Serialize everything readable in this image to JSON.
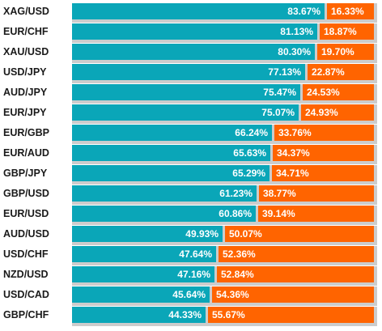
{
  "chart_data": {
    "type": "bar",
    "stacked": true,
    "orientation": "horizontal",
    "xlim": [
      0,
      100
    ],
    "grid": false,
    "categories": [
      "XAG/USD",
      "EUR/CHF",
      "XAU/USD",
      "USD/JPY",
      "AUD/JPY",
      "EUR/JPY",
      "EUR/GBP",
      "EUR/AUD",
      "GBP/JPY",
      "GBP/USD",
      "EUR/USD",
      "AUD/USD",
      "USD/CHF",
      "NZD/USD",
      "USD/CAD",
      "GBP/CHF"
    ],
    "series": [
      {
        "color": "#0aa6b8",
        "values": [
          83.67,
          81.13,
          80.3,
          77.13,
          75.47,
          75.07,
          66.24,
          65.63,
          65.29,
          61.23,
          60.86,
          49.93,
          47.64,
          47.16,
          45.64,
          44.33
        ],
        "labels": [
          "83.67%",
          "81.13%",
          "80.30%",
          "77.13%",
          "75.47%",
          "75.07%",
          "66.24%",
          "65.63%",
          "65.29%",
          "61.23%",
          "60.86%",
          "49.93%",
          "47.64%",
          "47.16%",
          "45.64%",
          "44.33%"
        ]
      },
      {
        "color": "#ff6400",
        "values": [
          16.33,
          18.87,
          19.7,
          22.87,
          24.53,
          24.93,
          33.76,
          34.37,
          34.71,
          38.77,
          39.14,
          50.07,
          52.36,
          52.84,
          54.36,
          55.67
        ],
        "labels": [
          "16.33%",
          "18.87%",
          "19.70%",
          "22.87%",
          "24.53%",
          "24.93%",
          "33.76%",
          "34.37%",
          "34.71%",
          "38.77%",
          "39.14%",
          "50.07%",
          "52.36%",
          "52.84%",
          "54.36%",
          "55.67%"
        ]
      }
    ]
  }
}
